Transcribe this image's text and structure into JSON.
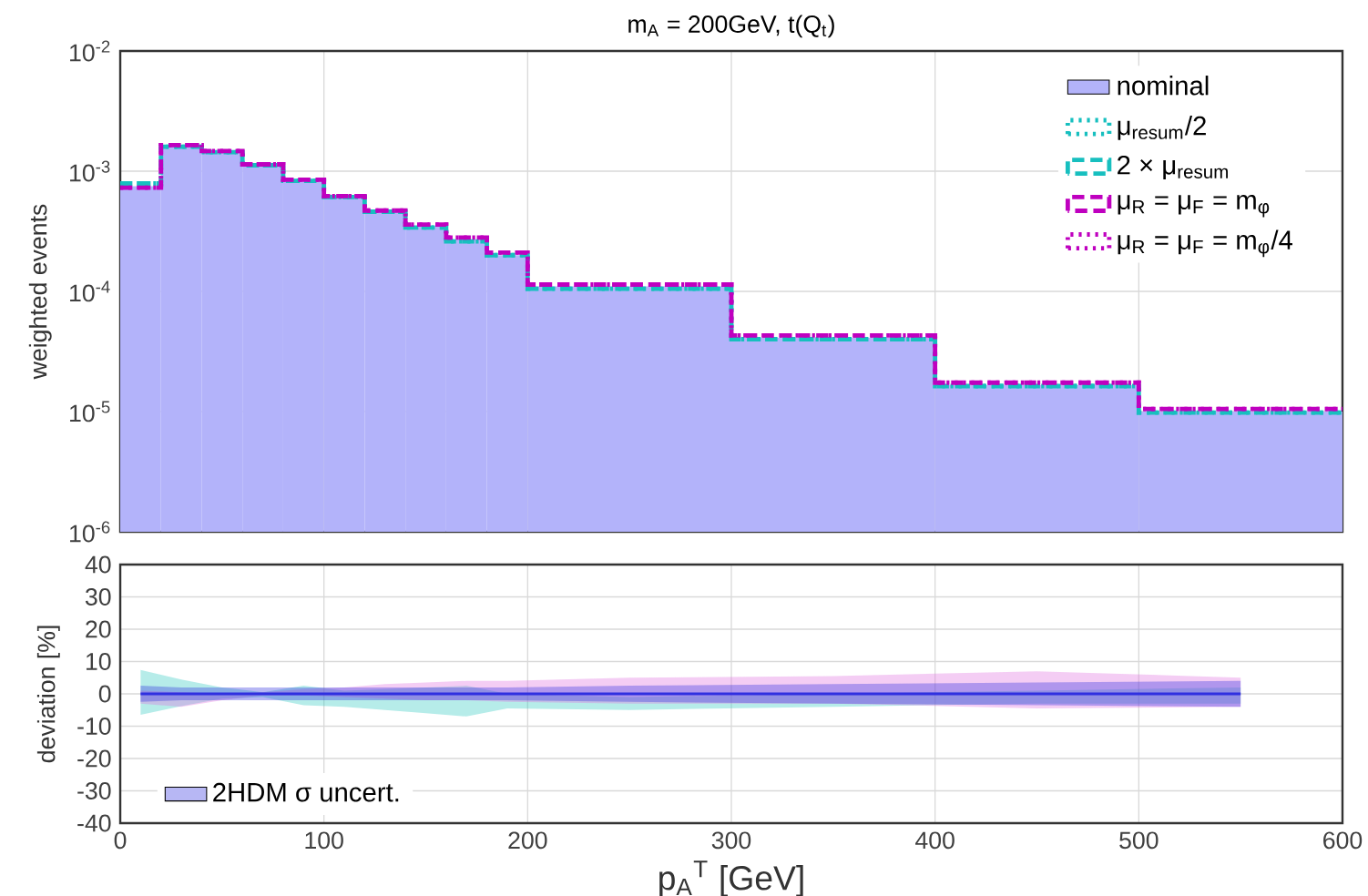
{
  "chart_data": [
    {
      "type": "histogram",
      "title": "m$_{A}$ = 200GeV, t(Q$_{t}$)",
      "ylabel": "weighted events",
      "bins": [
        0,
        20,
        40,
        60,
        80,
        100,
        120,
        140,
        160,
        180,
        200,
        300,
        400,
        500,
        600
      ],
      "series": [
        {
          "name": "nominal",
          "color": "#b3b3fa",
          "values": [
            0.00075,
            0.0016,
            0.00144,
            0.00112,
            0.00083,
            0.00061,
            0.00046,
            0.00035,
            0.00027,
            0.0002,
            0.00011,
            4.1e-05,
            1.66e-05,
            1e-05
          ]
        },
        {
          "name": "μ$_{resum}$/2",
          "type": "step",
          "color": "#17bfbf",
          "line_style": "dotted",
          "x": [
            0,
            20,
            40,
            60,
            80,
            100,
            120,
            140,
            160,
            180,
            200,
            300,
            400,
            500,
            600
          ],
          "values": [
            0.00079,
            0.0016,
            0.00144,
            0.00112,
            0.00083,
            0.00061,
            0.00046,
            0.00034,
            0.00026,
            0.0002,
            0.000105,
            4e-05,
            1.63e-05,
            9.8e-06,
            9.8e-06
          ]
        },
        {
          "name": "2 × μ$_{resum}$",
          "type": "step",
          "color": "#17bfbf",
          "line_style": "dashed",
          "x": [
            0,
            20,
            40,
            60,
            80,
            100,
            120,
            140,
            160,
            180,
            200,
            300,
            400,
            500,
            600
          ],
          "values": [
            0.00079,
            0.0016,
            0.00144,
            0.00112,
            0.00083,
            0.00061,
            0.00046,
            0.00034,
            0.00026,
            0.0002,
            0.000105,
            4e-05,
            1.63e-05,
            9.8e-06,
            9.8e-06
          ]
        },
        {
          "name": "μ$_{R}$ = μ$_{F}$ = m$_{φ}$",
          "type": "step",
          "color": "#bf00bf",
          "line_style": "dashed",
          "x": [
            0,
            20,
            40,
            60,
            80,
            100,
            120,
            140,
            160,
            180,
            200,
            300,
            400,
            500,
            600
          ],
          "values": [
            0.00073,
            0.00165,
            0.00147,
            0.00114,
            0.00085,
            0.00062,
            0.00047,
            0.00036,
            0.00028,
            0.00021,
            0.000114,
            4.3e-05,
            1.74e-05,
            1.05e-05,
            1.05e-05
          ]
        },
        {
          "name": "μ$_{R}$ = μ$_{F}$ = m$_{φ}$/4",
          "type": "step",
          "color": "#bf00bf",
          "line_style": "dotted",
          "x": [
            0,
            20,
            40,
            60,
            80,
            100,
            120,
            140,
            160,
            180,
            200,
            300,
            400,
            500,
            600
          ],
          "values": [
            0.00073,
            0.00165,
            0.00147,
            0.00114,
            0.00085,
            0.00062,
            0.00047,
            0.00036,
            0.00028,
            0.00021,
            0.000114,
            4.3e-05,
            1.74e-05,
            1.05e-05,
            1.05e-05
          ]
        }
      ],
      "log": "y",
      "xlim": [
        0,
        600
      ],
      "xticks": [
        0,
        100,
        200,
        300,
        400,
        500,
        600
      ],
      "ylim": [
        1e-06,
        0.01
      ],
      "yticks": [
        {
          "value": 1e-06,
          "label": "10$^{-6}$"
        },
        {
          "value": 1e-05,
          "label": "10$^{-5}$"
        },
        {
          "value": 0.0001,
          "label": "10$^{-4}$"
        },
        {
          "value": 0.001,
          "label": "10$^{-3}$"
        },
        {
          "value": 0.01,
          "label": "10$^{-2}$"
        }
      ],
      "tick_labels": "y",
      "grid": true,
      "legend": "top right"
    },
    {
      "type": "line",
      "xlabel": "p$_{A}$$^{T}$ [GeV]",
      "ylabel": "deviation [%]",
      "x": [
        10,
        30,
        50,
        70,
        90,
        110,
        130,
        150,
        170,
        190,
        250,
        350,
        450,
        550
      ],
      "series": [
        {
          "color": "#2ec8c0",
          "values": [
            null,
            null,
            null,
            null,
            null,
            null,
            null,
            null,
            null,
            null,
            null,
            null,
            null,
            null
          ],
          "upper": [
            7.4,
            4.4,
            2,
            0.5,
            2.5,
            1,
            1.5,
            2,
            2.5,
            0,
            -1,
            0,
            1,
            2
          ],
          "lower": [
            -6.5,
            -3.8,
            -1.5,
            -1,
            -3.5,
            -4,
            -5,
            -6,
            -7,
            -4.5,
            -5,
            -4,
            -3,
            -3
          ]
        },
        {
          "color": "#e070e0",
          "values": [
            null,
            null,
            null,
            null,
            null,
            null,
            null,
            null,
            null,
            null,
            null,
            null,
            null,
            null
          ],
          "upper": [
            1,
            0.5,
            0,
            0.5,
            1.5,
            2,
            3,
            3.5,
            4,
            4,
            5,
            5.5,
            7,
            5
          ],
          "lower": [
            -3,
            -4,
            -2,
            -0.5,
            -0.5,
            -1,
            -1.5,
            -2,
            -2,
            -2.5,
            -3,
            -3,
            -4.5,
            -4
          ]
        },
        {
          "name": "2HDM σ uncert.",
          "color": "#3030e0",
          "values": [
            0,
            0,
            0,
            0,
            0,
            0,
            0,
            0,
            0,
            0,
            0,
            0,
            0,
            0
          ],
          "upper": [
            2.5,
            2,
            2,
            2,
            2,
            2,
            2,
            2,
            2,
            2,
            2.5,
            3,
            3.5,
            4
          ],
          "lower": [
            -2.5,
            -2,
            -2,
            -2,
            -2,
            -2,
            -2,
            -2,
            -2,
            -2,
            -2.5,
            -3,
            -3.5,
            -4
          ]
        }
      ],
      "xlim": [
        0,
        600
      ],
      "xticks": [
        0,
        100,
        200,
        300,
        400,
        500,
        600
      ],
      "ylim": [
        -40,
        40
      ],
      "yticks": [
        -40,
        -30,
        -20,
        -10,
        0,
        10,
        20,
        30,
        40
      ],
      "grid": true,
      "legend": "bottom left"
    }
  ]
}
